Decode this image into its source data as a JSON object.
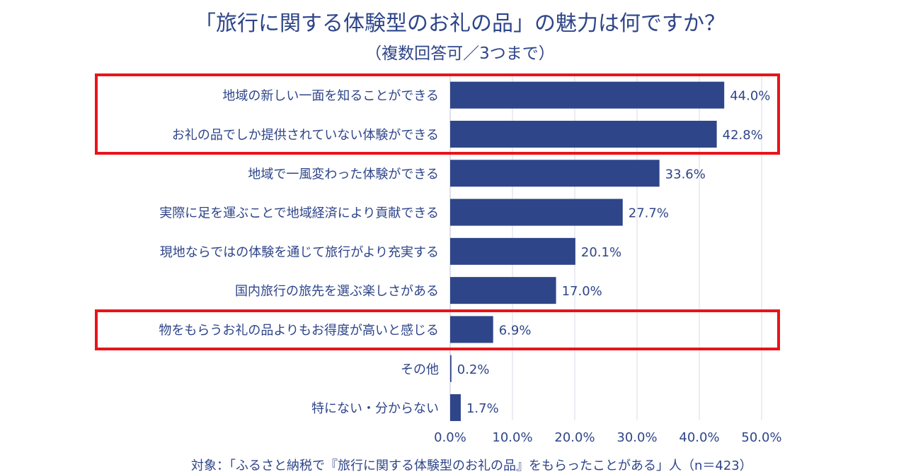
{
  "chart_data": {
    "type": "bar",
    "orientation": "horizontal",
    "title": "「旅行に関する体験型のお礼の品」の魅力は何ですか？",
    "subtitle": "（複数回答可／3つまで）",
    "categories": [
      "地域の新しい一面を知ることができる",
      "お礼の品でしか提供されていない体験ができる",
      "地域で一風変わった体験ができる",
      "実際に足を運ぶことで地域経済により貢献できる",
      "現地ならではの体験を通じて旅行がより充実する",
      "国内旅行の旅先を選ぶ楽しさがある",
      "物をもらうお礼の品よりもお得度が高いと感じる",
      "その他",
      "特にない・分からない"
    ],
    "values": [
      44.0,
      42.8,
      33.6,
      27.7,
      20.1,
      17.0,
      6.9,
      0.2,
      1.7
    ],
    "data_labels": [
      "44.0%",
      "42.8%",
      "33.6%",
      "27.7%",
      "20.1%",
      "17.0%",
      "6.9%",
      "0.2%",
      "1.7%"
    ],
    "xlim": [
      0,
      50
    ],
    "xticks": [
      "0.0%",
      "10.0%",
      "20.0%",
      "30.0%",
      "40.0%",
      "50.0%"
    ],
    "grid": true,
    "bar_color": "#2e4589",
    "highlight_color": "#e8141a",
    "highlighted_categories": [
      0,
      1,
      6
    ]
  },
  "footnote": "対象：「ふるさと納税で『旅行に関する体験型のお礼の品』をもらったことがある」人（n＝423）"
}
